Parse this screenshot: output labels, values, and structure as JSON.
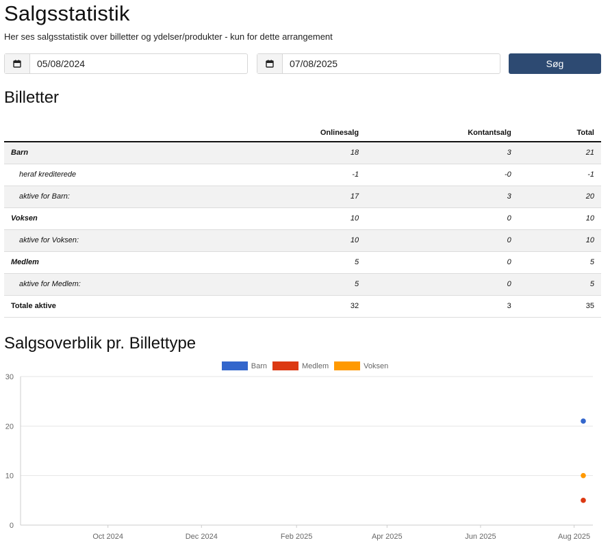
{
  "page": {
    "title": "Salgsstatistik",
    "description": "Her ses salgsstatistik over billetter og ydelser/produkter - kun for dette arrangement"
  },
  "filters": {
    "from_date": "05/08/2024",
    "to_date": "07/08/2025",
    "search_label": "Søg",
    "calendar_icon": "calendar-icon"
  },
  "tickets": {
    "title": "Billetter",
    "columns": [
      "",
      "Onlinesalg",
      "Kontantsalg",
      "Total"
    ],
    "rows": [
      {
        "label": "Barn",
        "online": "18",
        "cash": "3",
        "total": "21"
      },
      {
        "label": "heraf krediterede",
        "online": "-1",
        "cash": "-0",
        "total": "-1"
      },
      {
        "label": "aktive for Barn:",
        "online": "17",
        "cash": "3",
        "total": "20"
      },
      {
        "label": "Voksen",
        "online": "10",
        "cash": "0",
        "total": "10"
      },
      {
        "label": "aktive for Voksen:",
        "online": "10",
        "cash": "0",
        "total": "10"
      },
      {
        "label": "Medlem",
        "online": "5",
        "cash": "0",
        "total": "5"
      },
      {
        "label": "aktive for Medlem:",
        "online": "5",
        "cash": "0",
        "total": "5"
      },
      {
        "label": "Totale aktive",
        "online": "32",
        "cash": "3",
        "total": "35"
      }
    ]
  },
  "chart_section": {
    "title": "Salgsoverblik pr. Billettype"
  },
  "chart_data": {
    "type": "scatter",
    "title": "",
    "xlabel": "",
    "ylabel": "",
    "ylim": [
      0,
      30
    ],
    "y_ticks": [
      0,
      10,
      20,
      30
    ],
    "x_ticks": [
      "Oct 2024",
      "Dec 2024",
      "Feb 2025",
      "Apr 2025",
      "Jun 2025",
      "Aug 2025"
    ],
    "x_range": [
      "2024-08-05",
      "2025-08-07"
    ],
    "grid": true,
    "legend": "top",
    "series": [
      {
        "name": "Barn",
        "color": "#3366cc",
        "points": [
          {
            "x": "2025-08-07",
            "y": 21
          }
        ]
      },
      {
        "name": "Medlem",
        "color": "#dc3912",
        "points": [
          {
            "x": "2025-08-07",
            "y": 5
          }
        ]
      },
      {
        "name": "Voksen",
        "color": "#ff9900",
        "points": [
          {
            "x": "2025-08-07",
            "y": 10
          }
        ]
      }
    ]
  }
}
